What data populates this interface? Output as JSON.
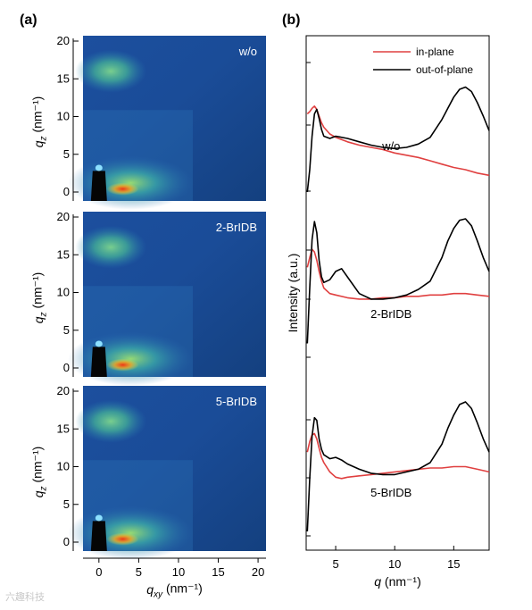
{
  "figure": {
    "panel_a_label": "(a)",
    "panel_b_label": "(b)",
    "watermark": "六趣科技",
    "colors": {
      "in_plane": "#e04040",
      "out_of_plane": "#000000",
      "giwaxs_background": "#1a4f9c",
      "giwaxs_ring": "#58c88a",
      "giwaxs_peak": "#e03a1a"
    }
  },
  "chart_data": [
    {
      "type": "heatmap",
      "panel": "a",
      "sample_label": "w/o",
      "xlabel": "",
      "ylabel": "q_z (nm⁻¹)",
      "ylim": [
        0,
        20
      ],
      "yticks": [
        "0",
        "5",
        "10",
        "15",
        "20"
      ],
      "xlim": [
        -2,
        21
      ],
      "grid": false,
      "colormap": "jet"
    },
    {
      "type": "heatmap",
      "panel": "a",
      "sample_label": "2-BrIDB",
      "xlabel": "",
      "ylabel": "q_z (nm⁻¹)",
      "ylim": [
        0,
        20
      ],
      "yticks": [
        "0",
        "5",
        "10",
        "15",
        "20"
      ],
      "xlim": [
        -2,
        21
      ],
      "grid": false,
      "colormap": "jet"
    },
    {
      "type": "heatmap",
      "panel": "a",
      "sample_label": "5-BrIDB",
      "xlabel": "q_xy (nm⁻¹)",
      "ylabel": "q_z (nm⁻¹)",
      "ylim": [
        0,
        20
      ],
      "yticks": [
        "0",
        "5",
        "10",
        "15",
        "20"
      ],
      "xlim": [
        -2,
        21
      ],
      "xticks": [
        "0",
        "5",
        "10",
        "15",
        "20"
      ],
      "grid": false,
      "colormap": "jet"
    },
    {
      "type": "line",
      "panel": "b",
      "xlabel": "q (nm⁻¹)",
      "ylabel": "Intensity (a.u.)",
      "xlim": [
        2.5,
        18
      ],
      "xticks": [
        "5",
        "10",
        "15"
      ],
      "legend": [
        "in-plane",
        "out-of-plane"
      ],
      "legend_position": "top-right",
      "grid": false,
      "groups": [
        {
          "label": "w/o",
          "series": [
            {
              "name": "in-plane",
              "x": [
                2.6,
                2.8,
                3.0,
                3.2,
                3.4,
                3.6,
                3.8,
                4.0,
                4.5,
                5.0,
                6.0,
                7.0,
                8.0,
                9.0,
                10.0,
                11.0,
                12.0,
                13.0,
                14.0,
                15.0,
                16.0,
                17.0,
                18.0
              ],
              "y": [
                0.7,
                0.72,
                0.75,
                0.77,
                0.74,
                0.68,
                0.62,
                0.58,
                0.52,
                0.49,
                0.45,
                0.42,
                0.4,
                0.38,
                0.35,
                0.33,
                0.31,
                0.28,
                0.25,
                0.22,
                0.2,
                0.17,
                0.15
              ]
            },
            {
              "name": "out-of-plane",
              "x": [
                2.6,
                2.8,
                3.0,
                3.2,
                3.4,
                3.6,
                3.8,
                4.0,
                4.5,
                5.0,
                6.0,
                7.0,
                8.0,
                9.0,
                10.0,
                11.0,
                12.0,
                13.0,
                14.0,
                14.5,
                15.0,
                15.5,
                16.0,
                16.5,
                17.0,
                17.5,
                18.0
              ],
              "y": [
                0.0,
                0.2,
                0.5,
                0.7,
                0.74,
                0.66,
                0.56,
                0.5,
                0.48,
                0.5,
                0.48,
                0.45,
                0.42,
                0.4,
                0.39,
                0.4,
                0.43,
                0.49,
                0.65,
                0.75,
                0.85,
                0.92,
                0.94,
                0.9,
                0.8,
                0.68,
                0.55
              ]
            }
          ]
        },
        {
          "label": "2-BrIDB",
          "series": [
            {
              "name": "in-plane",
              "x": [
                2.6,
                2.8,
                3.0,
                3.2,
                3.4,
                3.6,
                3.8,
                4.0,
                4.5,
                5.0,
                6.0,
                7.0,
                8.0,
                9.0,
                10.0,
                11.0,
                12.0,
                13.0,
                14.0,
                15.0,
                16.0,
                17.0,
                18.0
              ],
              "y": [
                0.65,
                0.72,
                0.78,
                0.76,
                0.7,
                0.62,
                0.55,
                0.5,
                0.46,
                0.45,
                0.43,
                0.42,
                0.42,
                0.43,
                0.43,
                0.44,
                0.44,
                0.45,
                0.45,
                0.46,
                0.46,
                0.45,
                0.44
              ]
            },
            {
              "name": "out-of-plane",
              "x": [
                2.6,
                2.8,
                3.0,
                3.2,
                3.4,
                3.6,
                3.8,
                4.0,
                4.5,
                5.0,
                5.5,
                6.0,
                7.0,
                8.0,
                9.0,
                10.0,
                11.0,
                12.0,
                13.0,
                14.0,
                14.5,
                15.0,
                15.5,
                16.0,
                16.5,
                17.0,
                17.5,
                18.0
              ],
              "y": [
                0.1,
                0.5,
                0.85,
                0.98,
                0.9,
                0.7,
                0.58,
                0.54,
                0.56,
                0.62,
                0.64,
                0.58,
                0.46,
                0.42,
                0.42,
                0.43,
                0.45,
                0.49,
                0.55,
                0.72,
                0.84,
                0.93,
                0.99,
                1.0,
                0.95,
                0.84,
                0.72,
                0.62
              ]
            }
          ]
        },
        {
          "label": "5-BrIDB",
          "series": [
            {
              "name": "in-plane",
              "x": [
                2.6,
                2.8,
                3.0,
                3.2,
                3.4,
                3.6,
                3.8,
                4.0,
                4.5,
                5.0,
                5.5,
                6.0,
                7.0,
                8.0,
                9.0,
                10.0,
                11.0,
                12.0,
                13.0,
                14.0,
                15.0,
                16.0,
                17.0,
                18.0
              ],
              "y": [
                0.6,
                0.68,
                0.73,
                0.74,
                0.7,
                0.63,
                0.56,
                0.52,
                0.45,
                0.41,
                0.4,
                0.41,
                0.42,
                0.43,
                0.44,
                0.45,
                0.46,
                0.47,
                0.48,
                0.48,
                0.49,
                0.49,
                0.47,
                0.45
              ]
            },
            {
              "name": "out-of-plane",
              "x": [
                2.6,
                2.8,
                3.0,
                3.2,
                3.4,
                3.6,
                3.8,
                4.0,
                4.5,
                5.0,
                5.5,
                6.0,
                7.0,
                8.0,
                9.0,
                10.0,
                11.0,
                12.0,
                13.0,
                14.0,
                14.5,
                15.0,
                15.5,
                16.0,
                16.5,
                17.0,
                17.5,
                18.0
              ],
              "y": [
                0.0,
                0.4,
                0.72,
                0.86,
                0.84,
                0.7,
                0.62,
                0.58,
                0.55,
                0.56,
                0.54,
                0.51,
                0.47,
                0.44,
                0.43,
                0.43,
                0.45,
                0.47,
                0.52,
                0.66,
                0.78,
                0.88,
                0.96,
                0.98,
                0.93,
                0.82,
                0.7,
                0.6
              ]
            }
          ]
        }
      ]
    }
  ]
}
